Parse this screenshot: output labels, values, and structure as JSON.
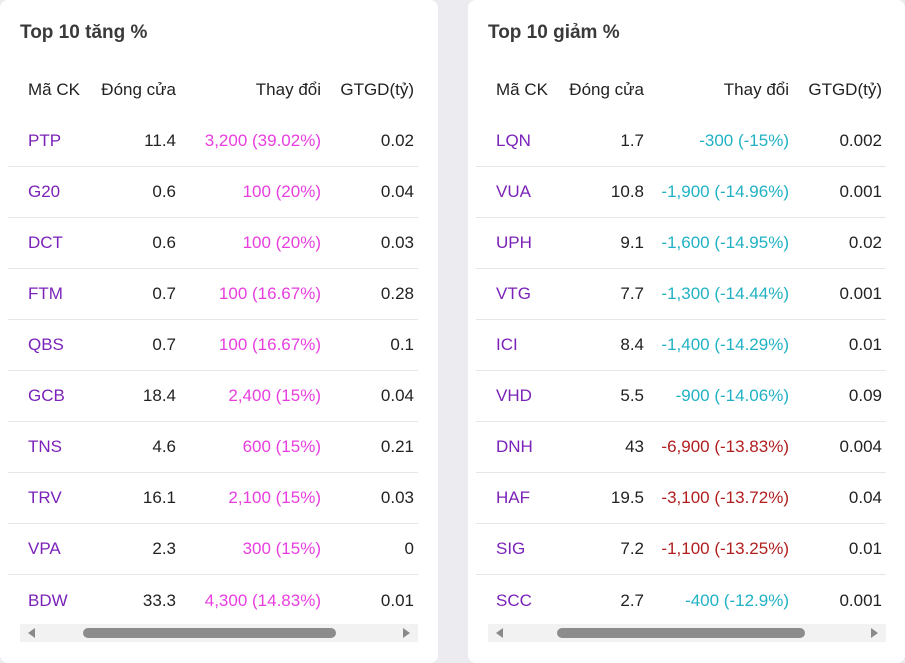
{
  "left": {
    "title": "Top 10 tăng %",
    "headers": {
      "symbol": "Mã CK",
      "close": "Đóng cửa",
      "change": "Thay đổi",
      "value": "GTGD(tỷ)"
    },
    "rows": [
      {
        "symbol": "PTP",
        "close": "11.4",
        "change": "3,200 (39.02%)",
        "value": "0.02",
        "trend": "ceiling"
      },
      {
        "symbol": "G20",
        "close": "0.6",
        "change": "100 (20%)",
        "value": "0.04",
        "trend": "ceiling"
      },
      {
        "symbol": "DCT",
        "close": "0.6",
        "change": "100 (20%)",
        "value": "0.03",
        "trend": "ceiling"
      },
      {
        "symbol": "FTM",
        "close": "0.7",
        "change": "100 (16.67%)",
        "value": "0.28",
        "trend": "ceiling"
      },
      {
        "symbol": "QBS",
        "close": "0.7",
        "change": "100 (16.67%)",
        "value": "0.1",
        "trend": "ceiling"
      },
      {
        "symbol": "GCB",
        "close": "18.4",
        "change": "2,400 (15%)",
        "value": "0.04",
        "trend": "ceiling"
      },
      {
        "symbol": "TNS",
        "close": "4.6",
        "change": "600 (15%)",
        "value": "0.21",
        "trend": "ceiling"
      },
      {
        "symbol": "TRV",
        "close": "16.1",
        "change": "2,100 (15%)",
        "value": "0.03",
        "trend": "ceiling"
      },
      {
        "symbol": "VPA",
        "close": "2.3",
        "change": "300 (15%)",
        "value": "0",
        "trend": "ceiling"
      },
      {
        "symbol": "BDW",
        "close": "33.3",
        "change": "4,300 (14.83%)",
        "value": "0.01",
        "trend": "ceiling"
      }
    ]
  },
  "right": {
    "title": "Top 10 giảm %",
    "headers": {
      "symbol": "Mã CK",
      "close": "Đóng cửa",
      "change": "Thay đổi",
      "value": "GTGD(tỷ)"
    },
    "rows": [
      {
        "symbol": "LQN",
        "close": "1.7",
        "change": "-300 (-15%)",
        "value": "0.002",
        "trend": "floor"
      },
      {
        "symbol": "VUA",
        "close": "10.8",
        "change": "-1,900 (-14.96%)",
        "value": "0.001",
        "trend": "floor"
      },
      {
        "symbol": "UPH",
        "close": "9.1",
        "change": "-1,600 (-14.95%)",
        "value": "0.02",
        "trend": "floor"
      },
      {
        "symbol": "VTG",
        "close": "7.7",
        "change": "-1,300 (-14.44%)",
        "value": "0.001",
        "trend": "floor"
      },
      {
        "symbol": "ICI",
        "close": "8.4",
        "change": "-1,400 (-14.29%)",
        "value": "0.01",
        "trend": "floor"
      },
      {
        "symbol": "VHD",
        "close": "5.5",
        "change": "-900 (-14.06%)",
        "value": "0.09",
        "trend": "floor"
      },
      {
        "symbol": "DNH",
        "close": "43",
        "change": "-6,900 (-13.83%)",
        "value": "0.004",
        "trend": "down"
      },
      {
        "symbol": "HAF",
        "close": "19.5",
        "change": "-3,100 (-13.72%)",
        "value": "0.04",
        "trend": "down"
      },
      {
        "symbol": "SIG",
        "close": "7.2",
        "change": "-1,100 (-13.25%)",
        "value": "0.01",
        "trend": "down"
      },
      {
        "symbol": "SCC",
        "close": "2.7",
        "change": "-400 (-12.9%)",
        "value": "0.001",
        "trend": "floor"
      }
    ]
  },
  "colors": {
    "symbol": "#7b22b9",
    "ceiling": "#e83ee0",
    "floor": "#20b2c4",
    "down": "#b01e1e"
  }
}
